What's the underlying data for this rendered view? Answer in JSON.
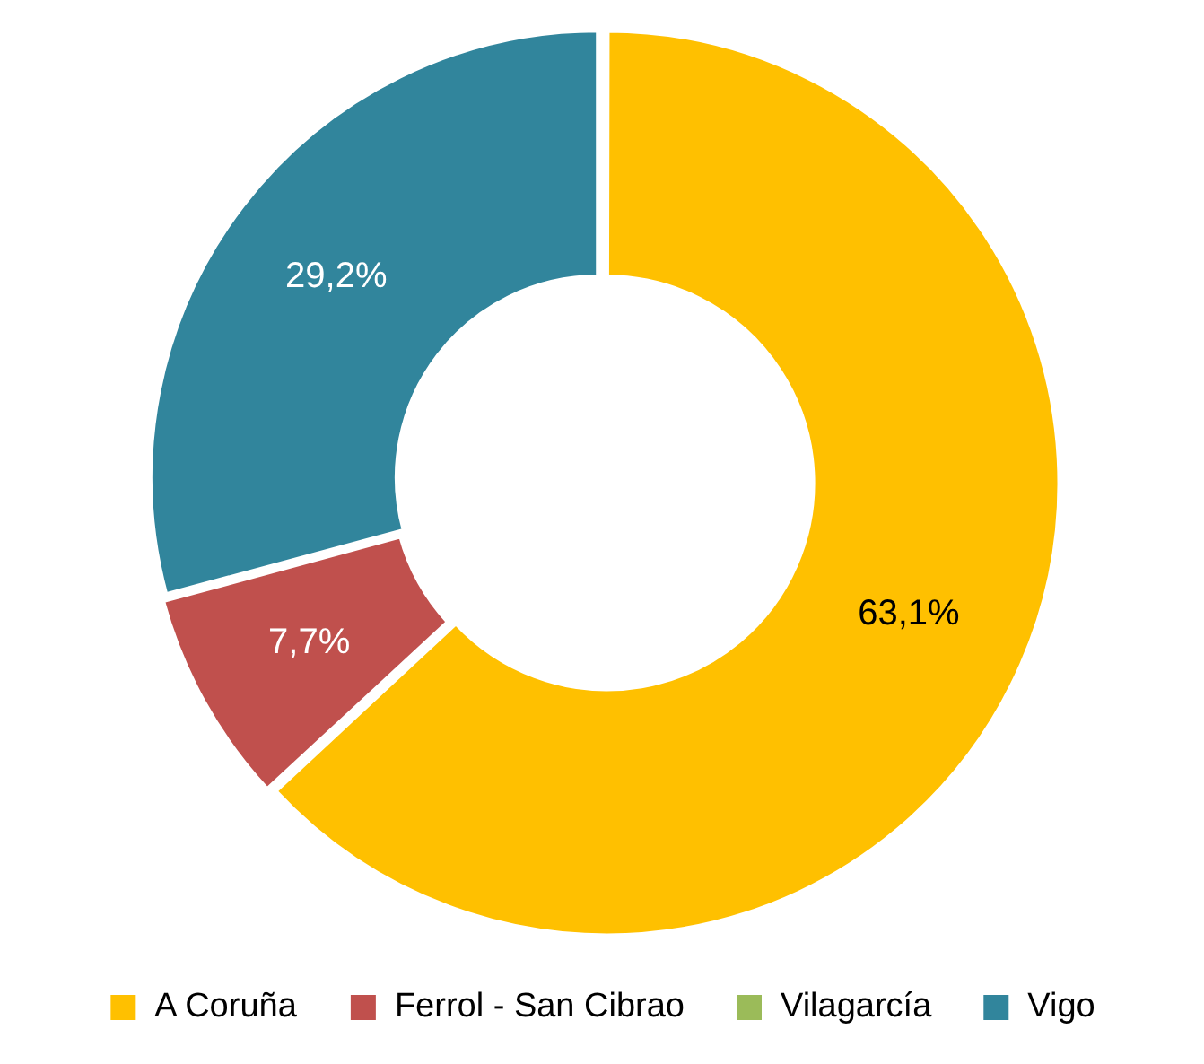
{
  "chart_data": {
    "type": "donut",
    "categories": [
      "A Coruña",
      "Ferrol - San Cibrao",
      "Vilagarcía",
      "Vigo"
    ],
    "values": [
      63.1,
      7.7,
      0,
      29.2
    ],
    "colors": [
      "#ffc000",
      "#c0504d",
      "#9bbb59",
      "#31859c"
    ],
    "value_labels": [
      "63,1%",
      "7,7%",
      null,
      "29,2%"
    ],
    "legend": "bottom"
  }
}
